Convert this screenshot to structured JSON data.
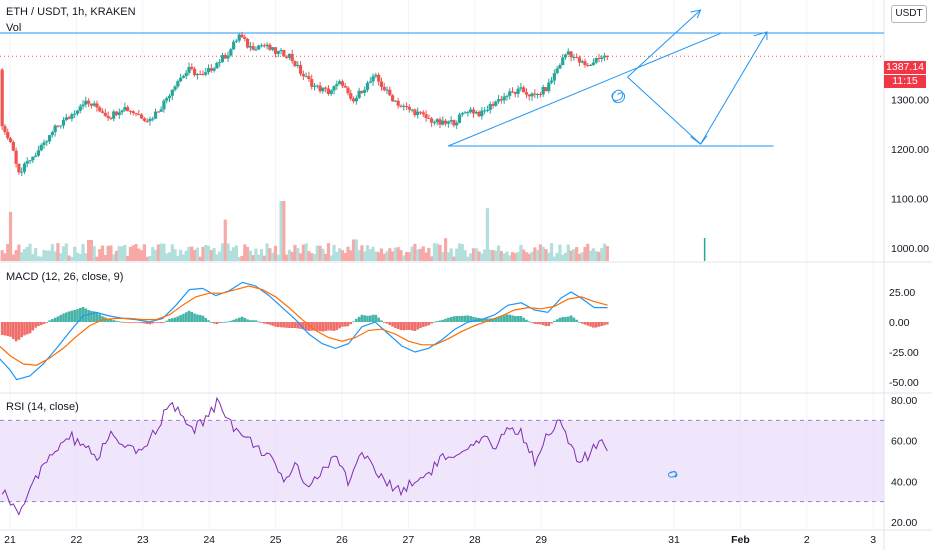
{
  "symbol_header": "ETH / USDT, 1h, KRAKEN",
  "volume_label": "Vol",
  "currency_badge": "USDT",
  "last_price_label": "1387.14",
  "last_time_label": "11:15",
  "colors": {
    "up": "#26a69a",
    "down": "#ef5350",
    "trendline": "#2196f3",
    "macd_line": "#2196f3",
    "signal_line": "#ff6d00",
    "rsi_line": "#7e2db3",
    "rsi_band": "#e9dbfb",
    "price_line": "#ef5350"
  },
  "chart_data": [
    {
      "type": "candlestick",
      "pane": "price",
      "title": "ETH / USDT, 1h, KRAKEN",
      "x_ticks": [
        "21",
        "22",
        "23",
        "24",
        "25",
        "26",
        "27",
        "28",
        "29",
        "31",
        "Feb",
        "2",
        "3"
      ],
      "y_ticks": [
        "1000.00",
        "1100.00",
        "1200.00",
        "1300.00"
      ],
      "ylim": [
        980,
        1440
      ],
      "last_price": 1387.14,
      "series_path": [
        [
          20.0,
          1360
        ],
        [
          20.2,
          1320
        ],
        [
          20.4,
          1310
        ],
        [
          20.6,
          1250
        ],
        [
          20.8,
          1260
        ],
        [
          21.0,
          1220
        ],
        [
          21.15,
          1150
        ],
        [
          21.3,
          1180
        ],
        [
          21.5,
          1205
        ],
        [
          21.7,
          1245
        ],
        [
          21.9,
          1265
        ],
        [
          22.1,
          1295
        ],
        [
          22.3,
          1285
        ],
        [
          22.5,
          1265
        ],
        [
          22.7,
          1285
        ],
        [
          22.9,
          1272
        ],
        [
          23.1,
          1258
        ],
        [
          23.3,
          1290
        ],
        [
          23.5,
          1335
        ],
        [
          23.7,
          1360
        ],
        [
          23.9,
          1345
        ],
        [
          24.1,
          1372
        ],
        [
          24.3,
          1395
        ],
        [
          24.45,
          1430
        ],
        [
          24.6,
          1405
        ],
        [
          24.8,
          1410
        ],
        [
          25.0,
          1395
        ],
        [
          25.2,
          1390
        ],
        [
          25.4,
          1350
        ],
        [
          25.6,
          1325
        ],
        [
          25.8,
          1315
        ],
        [
          26.0,
          1335
        ],
        [
          26.15,
          1290
        ],
        [
          26.3,
          1320
        ],
        [
          26.5,
          1345
        ],
        [
          26.7,
          1310
        ],
        [
          26.9,
          1285
        ],
        [
          27.1,
          1275
        ],
        [
          27.3,
          1260
        ],
        [
          27.5,
          1250
        ],
        [
          27.7,
          1255
        ],
        [
          27.9,
          1280
        ],
        [
          28.1,
          1270
        ],
        [
          28.3,
          1295
        ],
        [
          28.5,
          1310
        ],
        [
          28.7,
          1318
        ],
        [
          28.9,
          1305
        ],
        [
          29.1,
          1325
        ],
        [
          29.25,
          1365
        ],
        [
          29.4,
          1398
        ],
        [
          29.55,
          1378
        ],
        [
          29.7,
          1365
        ],
        [
          29.85,
          1385
        ],
        [
          30.0,
          1387
        ]
      ],
      "volume": {
        "spikes": [
          [
            21.0,
            820
          ],
          [
            22.2,
            350
          ],
          [
            23.3,
            290
          ],
          [
            24.25,
            690
          ],
          [
            25.1,
            1000
          ],
          [
            26.2,
            360
          ],
          [
            27.55,
            380
          ],
          [
            28.2,
            880
          ],
          [
            30.0,
            250
          ],
          [
            31.45,
            310
          ]
        ]
      }
    },
    {
      "type": "line",
      "pane": "macd",
      "title": "MACD (12, 26, close, 9)",
      "y_ticks": [
        "25.00",
        "0.00",
        "-25.00",
        "-50.00"
      ],
      "ylim": [
        -55,
        35
      ],
      "series": [
        {
          "name": "MACD",
          "points": [
            [
              20.0,
              -2
            ],
            [
              20.3,
              -5
            ],
            [
              20.6,
              -15
            ],
            [
              20.8,
              -28
            ],
            [
              21.0,
              -40
            ],
            [
              21.1,
              -48
            ],
            [
              21.3,
              -45
            ],
            [
              21.5,
              -35
            ],
            [
              21.7,
              -22
            ],
            [
              21.9,
              -8
            ],
            [
              22.1,
              5
            ],
            [
              22.3,
              8
            ],
            [
              22.5,
              5
            ],
            [
              22.7,
              3
            ],
            [
              22.9,
              2
            ],
            [
              23.1,
              0
            ],
            [
              23.3,
              3
            ],
            [
              23.5,
              14
            ],
            [
              23.7,
              27
            ],
            [
              23.9,
              28
            ],
            [
              24.1,
              22
            ],
            [
              24.3,
              26
            ],
            [
              24.5,
              33
            ],
            [
              24.7,
              30
            ],
            [
              24.9,
              22
            ],
            [
              25.1,
              12
            ],
            [
              25.3,
              2
            ],
            [
              25.5,
              -10
            ],
            [
              25.7,
              -18
            ],
            [
              25.9,
              -22
            ],
            [
              26.1,
              -18
            ],
            [
              26.3,
              -4
            ],
            [
              26.5,
              0
            ],
            [
              26.7,
              -10
            ],
            [
              26.9,
              -20
            ],
            [
              27.1,
              -25
            ],
            [
              27.3,
              -22
            ],
            [
              27.5,
              -15
            ],
            [
              27.7,
              -6
            ],
            [
              27.9,
              0
            ],
            [
              28.1,
              2
            ],
            [
              28.3,
              6
            ],
            [
              28.5,
              14
            ],
            [
              28.7,
              16
            ],
            [
              28.9,
              10
            ],
            [
              29.1,
              8
            ],
            [
              29.3,
              20
            ],
            [
              29.45,
              25
            ],
            [
              29.6,
              20
            ],
            [
              29.8,
              12
            ],
            [
              30.0,
              12
            ]
          ]
        },
        {
          "name": "Signal",
          "points": [
            [
              20.0,
              -2
            ],
            [
              20.3,
              -4
            ],
            [
              20.6,
              -9
            ],
            [
              20.8,
              -18
            ],
            [
              21.0,
              -28
            ],
            [
              21.2,
              -35
            ],
            [
              21.4,
              -36
            ],
            [
              21.6,
              -30
            ],
            [
              21.8,
              -22
            ],
            [
              22.0,
              -12
            ],
            [
              22.2,
              -3
            ],
            [
              22.4,
              2
            ],
            [
              22.6,
              3
            ],
            [
              22.8,
              3
            ],
            [
              23.0,
              2
            ],
            [
              23.2,
              2
            ],
            [
              23.4,
              6
            ],
            [
              23.6,
              14
            ],
            [
              23.8,
              21
            ],
            [
              24.0,
              24
            ],
            [
              24.2,
              24
            ],
            [
              24.4,
              27
            ],
            [
              24.6,
              30
            ],
            [
              24.8,
              27
            ],
            [
              25.0,
              21
            ],
            [
              25.2,
              12
            ],
            [
              25.4,
              2
            ],
            [
              25.6,
              -7
            ],
            [
              25.8,
              -13
            ],
            [
              26.0,
              -16
            ],
            [
              26.2,
              -13
            ],
            [
              26.4,
              -7
            ],
            [
              26.6,
              -6
            ],
            [
              26.8,
              -10
            ],
            [
              27.0,
              -16
            ],
            [
              27.2,
              -19
            ],
            [
              27.4,
              -19
            ],
            [
              27.6,
              -14
            ],
            [
              27.8,
              -8
            ],
            [
              28.0,
              -3
            ],
            [
              28.2,
              1
            ],
            [
              28.4,
              5
            ],
            [
              28.6,
              10
            ],
            [
              28.8,
              12
            ],
            [
              29.0,
              11
            ],
            [
              29.2,
              13
            ],
            [
              29.4,
              19
            ],
            [
              29.6,
              21
            ],
            [
              29.8,
              17
            ],
            [
              30.0,
              14
            ]
          ]
        }
      ]
    },
    {
      "type": "line",
      "pane": "rsi",
      "title": "RSI (14, close)",
      "y_ticks": [
        "80.00",
        "60.00",
        "40.00",
        "20.00"
      ],
      "ylim": [
        18,
        82
      ],
      "band": [
        30,
        70
      ],
      "series": [
        {
          "name": "RSI",
          "points": [
            [
              20.0,
              55
            ],
            [
              20.2,
              62
            ],
            [
              20.4,
              48
            ],
            [
              20.6,
              58
            ],
            [
              20.8,
              38
            ],
            [
              21.0,
              30
            ],
            [
              21.15,
              25
            ],
            [
              21.3,
              38
            ],
            [
              21.5,
              46
            ],
            [
              21.7,
              56
            ],
            [
              21.9,
              62
            ],
            [
              22.1,
              58
            ],
            [
              22.3,
              50
            ],
            [
              22.5,
              64
            ],
            [
              22.7,
              56
            ],
            [
              22.9,
              54
            ],
            [
              23.1,
              60
            ],
            [
              23.3,
              72
            ],
            [
              23.45,
              78
            ],
            [
              23.6,
              70
            ],
            [
              23.8,
              66
            ],
            [
              24.0,
              73
            ],
            [
              24.15,
              80
            ],
            [
              24.3,
              70
            ],
            [
              24.5,
              62
            ],
            [
              24.7,
              58
            ],
            [
              24.9,
              52
            ],
            [
              25.1,
              40
            ],
            [
              25.3,
              48
            ],
            [
              25.5,
              38
            ],
            [
              25.7,
              45
            ],
            [
              25.9,
              52
            ],
            [
              26.1,
              40
            ],
            [
              26.3,
              55
            ],
            [
              26.5,
              45
            ],
            [
              26.7,
              38
            ],
            [
              26.9,
              36
            ],
            [
              27.1,
              40
            ],
            [
              27.3,
              44
            ],
            [
              27.5,
              52
            ],
            [
              27.7,
              50
            ],
            [
              27.9,
              55
            ],
            [
              28.1,
              60
            ],
            [
              28.3,
              58
            ],
            [
              28.5,
              66
            ],
            [
              28.7,
              64
            ],
            [
              28.9,
              50
            ],
            [
              29.1,
              64
            ],
            [
              29.25,
              70
            ],
            [
              29.4,
              60
            ],
            [
              29.55,
              50
            ],
            [
              29.7,
              52
            ],
            [
              29.85,
              58
            ],
            [
              30.0,
              57
            ]
          ]
        }
      ]
    }
  ]
}
